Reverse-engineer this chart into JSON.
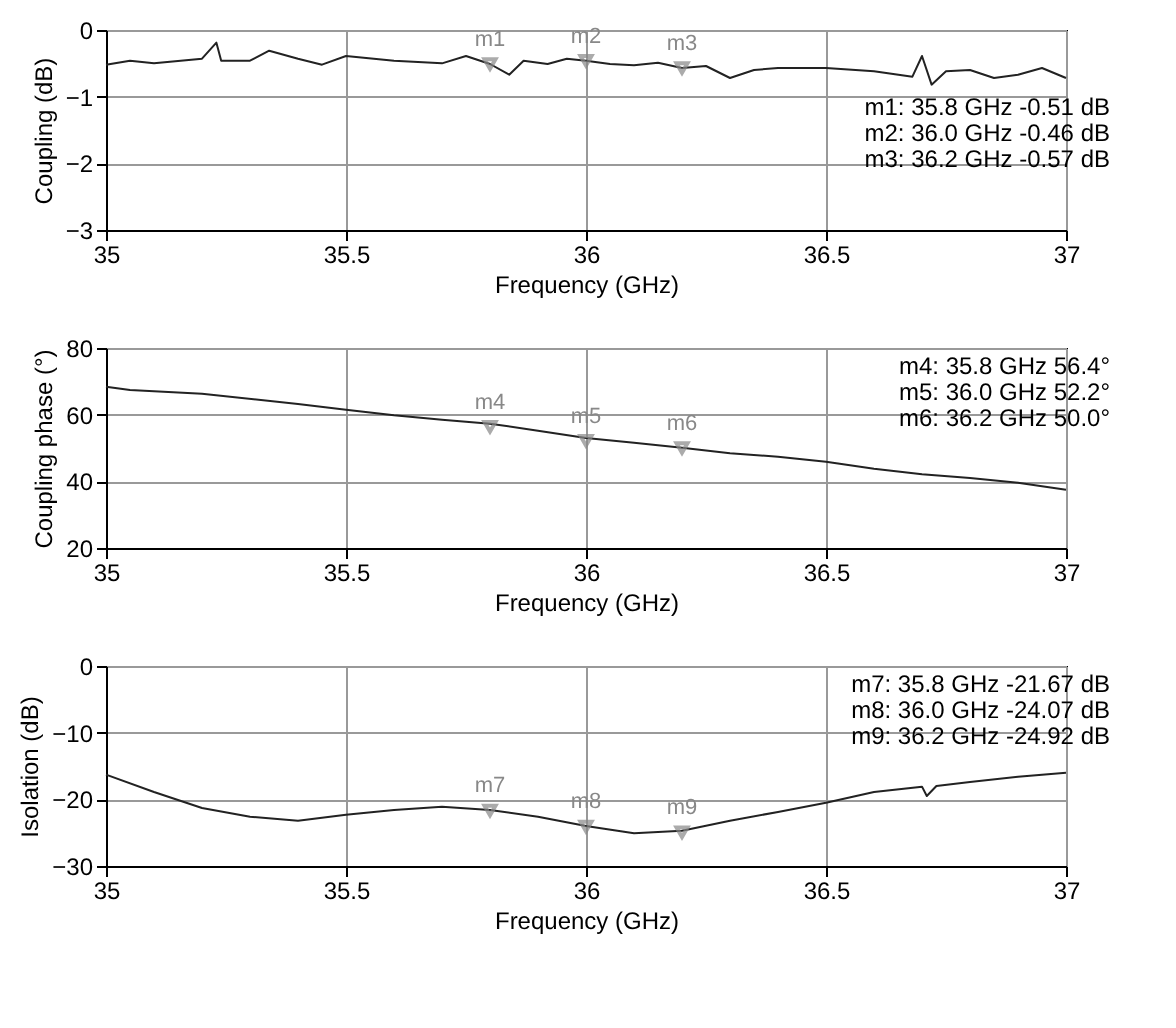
{
  "chart_data": [
    {
      "type": "line",
      "xlabel": "Frequency (GHz)",
      "ylabel": "Coupling (dB)",
      "xlim": [
        35,
        37
      ],
      "xticks": [
        35,
        35.5,
        36,
        36.5,
        37
      ],
      "ylim": [
        -3,
        0
      ],
      "yticks": [
        -3,
        -2,
        -1,
        0
      ],
      "grid": true,
      "series": [
        {
          "color": "#222222",
          "x": [
            35.0,
            35.05,
            35.1,
            35.2,
            35.23,
            35.24,
            35.3,
            35.34,
            35.4,
            35.45,
            35.5,
            35.6,
            35.7,
            35.75,
            35.8,
            35.84,
            35.87,
            35.92,
            35.96,
            36.0,
            36.05,
            36.1,
            36.15,
            36.2,
            36.25,
            36.3,
            36.35,
            36.4,
            36.5,
            36.6,
            36.68,
            36.7,
            36.72,
            36.75,
            36.8,
            36.85,
            36.9,
            36.95,
            37.0
          ],
          "values": [
            -0.52,
            -0.46,
            -0.5,
            -0.43,
            -0.19,
            -0.46,
            -0.46,
            -0.31,
            -0.43,
            -0.52,
            -0.39,
            -0.46,
            -0.5,
            -0.39,
            -0.51,
            -0.67,
            -0.46,
            -0.51,
            -0.43,
            -0.46,
            -0.51,
            -0.53,
            -0.49,
            -0.57,
            -0.54,
            -0.72,
            -0.6,
            -0.57,
            -0.57,
            -0.62,
            -0.7,
            -0.39,
            -0.82,
            -0.62,
            -0.6,
            -0.72,
            -0.67,
            -0.57,
            -0.72
          ]
        },
        {
          "type": "scatter",
          "marker": "triangle",
          "color": "#888888",
          "x": [
            35.8,
            36.0,
            36.2
          ],
          "values": [
            -0.51,
            -0.46,
            -0.57
          ]
        }
      ],
      "annotations": [
        {
          "text": "m1",
          "x": 35.8,
          "y": -0.51
        },
        {
          "text": "m2",
          "x": 36.0,
          "y": -0.46
        },
        {
          "text": "m3",
          "x": 36.2,
          "y": -0.57
        },
        "m1: 35.8 GHz -0.51 dB",
        "m2: 36.0 GHz -0.46 dB",
        "m3: 36.2 GHz -0.57 dB"
      ]
    },
    {
      "type": "line",
      "xlabel": "Frequency (GHz)",
      "ylabel": "Coupling phase (°)",
      "xlim": [
        35,
        37
      ],
      "xticks": [
        35,
        35.5,
        36,
        36.5,
        37
      ],
      "ylim": [
        20,
        80
      ],
      "yticks": [
        20,
        40,
        60,
        80
      ],
      "grid": true,
      "series": [
        {
          "color": "#222222",
          "x": [
            35.0,
            35.05,
            35.2,
            35.4,
            35.5,
            35.6,
            35.7,
            35.8,
            35.9,
            36.0,
            36.1,
            36.2,
            36.3,
            36.4,
            36.5,
            36.6,
            36.7,
            36.8,
            36.9,
            37.0
          ],
          "values": [
            68.4,
            67.4,
            66.3,
            63.2,
            61.5,
            59.8,
            58.5,
            57.3,
            55.2,
            53,
            51.6,
            50.1,
            48.4,
            47.4,
            45.9,
            43.8,
            42.1,
            41,
            39.6,
            37.5
          ]
        },
        {
          "type": "scatter",
          "marker": "triangle",
          "color": "#888888",
          "x": [
            35.8,
            36.0,
            36.2
          ],
          "values": [
            56.4,
            52.2,
            50.0
          ]
        }
      ],
      "annotations": [
        {
          "text": "m4",
          "x": 35.8,
          "y": 56.4
        },
        {
          "text": "m5",
          "x": 36.0,
          "y": 52.2
        },
        {
          "text": "m6",
          "x": 36.2,
          "y": 50.0
        },
        "m4: 35.8 GHz 56.4°",
        "m5: 36.0 GHz 52.2°",
        "m6: 36.2 GHz 50.0°"
      ]
    },
    {
      "type": "line",
      "xlabel": "Frequency (GHz)",
      "ylabel": "Isolation (dB)",
      "xlim": [
        35,
        37
      ],
      "xticks": [
        35,
        35.5,
        36,
        36.5,
        37
      ],
      "ylim": [
        -30,
        0
      ],
      "yticks": [
        -30,
        -20,
        -10,
        0
      ],
      "grid": true,
      "series": [
        {
          "color": "#222222",
          "x": [
            35.0,
            35.1,
            35.2,
            35.3,
            35.4,
            35.5,
            35.6,
            35.7,
            35.8,
            35.9,
            36.0,
            36.1,
            36.2,
            36.3,
            36.4,
            36.5,
            36.6,
            36.7,
            36.71,
            36.73,
            36.8,
            36.9,
            37.0
          ],
          "values": [
            -16.3,
            -18.9,
            -21.3,
            -22.6,
            -23.2,
            -22.3,
            -21.6,
            -21.1,
            -21.6,
            -22.6,
            -24,
            -25.1,
            -24.7,
            -23.2,
            -21.9,
            -20.5,
            -18.9,
            -18.1,
            -19.5,
            -18,
            -17.4,
            -16.6,
            -16
          ]
        },
        {
          "type": "scatter",
          "marker": "triangle",
          "color": "#888888",
          "x": [
            35.8,
            36.0,
            36.2
          ],
          "values": [
            -21.67,
            -24.07,
            -24.92
          ]
        }
      ],
      "annotations": [
        {
          "text": "m7",
          "x": 35.8,
          "y": -21.67
        },
        {
          "text": "m8",
          "x": 36.0,
          "y": -24.07
        },
        {
          "text": "m9",
          "x": 36.2,
          "y": -24.92
        },
        "m7: 35.8 GHz -21.67 dB",
        "m8: 36.0 GHz -24.07 dB",
        "m9: 36.2 GHz -24.92 dB"
      ]
    }
  ]
}
